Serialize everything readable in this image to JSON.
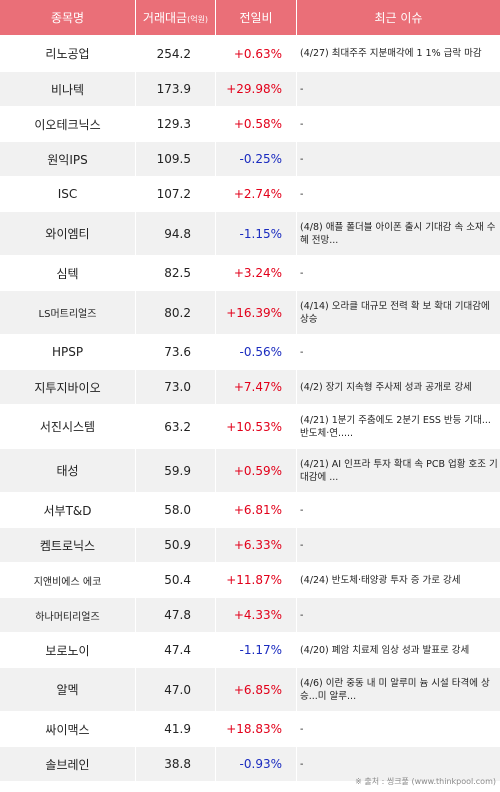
{
  "header": {
    "name": "종목명",
    "amount": "거래대금",
    "amount_unit": "(억원)",
    "change": "전일비",
    "issue": "최근 이슈"
  },
  "rows": [
    {
      "name": "리노공업",
      "amount": "254.2",
      "change": "+0.63%",
      "dir": "up",
      "issue": "(4/27) 최대주주 지분매각에 1 1% 급락 마감",
      "h": 36
    },
    {
      "name": "비나텍",
      "amount": "173.9",
      "change": "+29.98%",
      "dir": "up",
      "issue": "-",
      "h": 35
    },
    {
      "name": "이오테크닉스",
      "amount": "129.3",
      "change": "+0.58%",
      "dir": "up",
      "issue": "-",
      "h": 35
    },
    {
      "name": "원익IPS",
      "amount": "109.5",
      "change": "-0.25%",
      "dir": "down",
      "issue": "-",
      "h": 35
    },
    {
      "name": "ISC",
      "amount": "107.2",
      "change": "+2.74%",
      "dir": "up",
      "issue": "-",
      "h": 35
    },
    {
      "name": "와이엠티",
      "amount": "94.8",
      "change": "-1.15%",
      "dir": "down",
      "issue": "(4/8) 애플 폴더블 아이폰 출시 기대감 속 소재 수혜 전망...",
      "h": 44
    },
    {
      "name": "심텍",
      "amount": "82.5",
      "change": "+3.24%",
      "dir": "up",
      "issue": "-",
      "h": 35
    },
    {
      "name": "LS머트리얼즈",
      "amount": "80.2",
      "change": "+16.39%",
      "dir": "up",
      "issue": "(4/14) 오라클 대규모 전력 확 보 확대 기대감에 상승",
      "h": 44,
      "small": true
    },
    {
      "name": "HPSP",
      "amount": "73.6",
      "change": "-0.56%",
      "dir": "down",
      "issue": "-",
      "h": 35
    },
    {
      "name": "지투지바이오",
      "amount": "73.0",
      "change": "+7.47%",
      "dir": "up",
      "issue": "(4/2) 장기 지속형 주사제 성과 공개로 강세",
      "h": 35
    },
    {
      "name": "서진시스템",
      "amount": "63.2",
      "change": "+10.53%",
      "dir": "up",
      "issue": "(4/21) 1분기 주춤에도 2분기 ESS 반등 기대...반도체·연.....",
      "h": 44
    },
    {
      "name": "태성",
      "amount": "59.9",
      "change": "+0.59%",
      "dir": "up",
      "issue": "(4/21) AI 인프라 투자 확대 속 PCB 업황 호조 기대감에 ...",
      "h": 44
    },
    {
      "name": "서부T&D",
      "amount": "58.0",
      "change": "+6.81%",
      "dir": "up",
      "issue": "-",
      "h": 35
    },
    {
      "name": "켐트로닉스",
      "amount": "50.9",
      "change": "+6.33%",
      "dir": "up",
      "issue": "-",
      "h": 35
    },
    {
      "name": "지앤비에스 에코",
      "amount": "50.4",
      "change": "+11.87%",
      "dir": "up",
      "issue": "(4/24) 반도체·태양광 투자 증 가로 강세",
      "h": 35,
      "small": true
    },
    {
      "name": "하나머티리얼즈",
      "amount": "47.8",
      "change": "+4.33%",
      "dir": "up",
      "issue": "-",
      "h": 35,
      "small": true
    },
    {
      "name": "보로노이",
      "amount": "47.4",
      "change": "-1.17%",
      "dir": "down",
      "issue": "(4/20) 폐암 치료제 임상 성과 발표로 강세",
      "h": 35
    },
    {
      "name": "알멕",
      "amount": "47.0",
      "change": "+6.85%",
      "dir": "up",
      "issue": "(4/6) 이란 중동 내 미 알루미 늄 시설 타격에 상승...미 알루...",
      "h": 44
    },
    {
      "name": "싸이맥스",
      "amount": "41.9",
      "change": "+18.83%",
      "dir": "up",
      "issue": "-",
      "h": 35
    },
    {
      "name": "솔브레인",
      "amount": "38.8",
      "change": "-0.93%",
      "dir": "down",
      "issue": "-",
      "h": 35
    }
  ],
  "source": "※ 출처 : 씽크풀 (www.thinkpool.com)"
}
